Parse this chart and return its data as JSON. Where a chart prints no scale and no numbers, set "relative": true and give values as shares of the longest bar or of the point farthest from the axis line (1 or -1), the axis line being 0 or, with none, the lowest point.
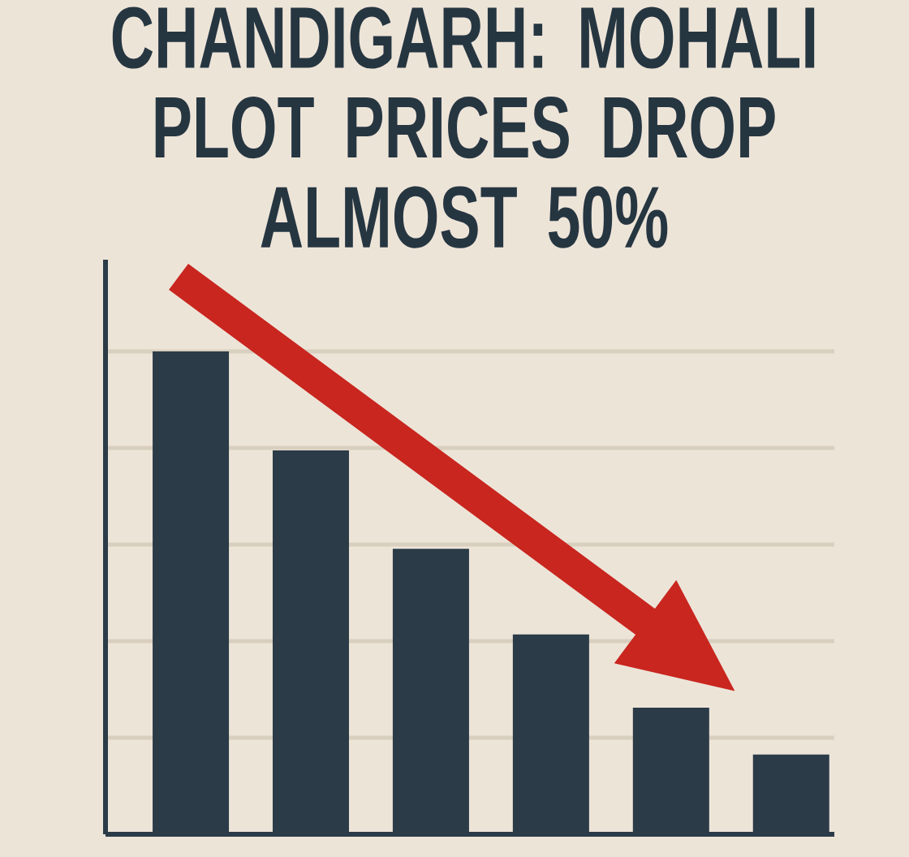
{
  "chart_data": {
    "type": "bar",
    "title": "CHANDIGARH: MOHALI PLOT PRICES DROP ALMOST 50%",
    "categories": [
      null,
      null,
      null,
      null,
      null,
      null
    ],
    "values": [
      1,
      0.795,
      0.591,
      0.414,
      0.262,
      0.165
    ],
    "color": "#2b3b48",
    "relative": true,
    "grid": "y"
  }
}
